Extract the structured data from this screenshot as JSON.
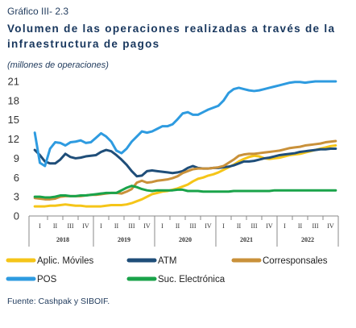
{
  "header": {
    "graph_label": "Gráfico III- 2.3",
    "title": "Volumen de las operaciones realizadas a través de la infraestructura de pagos",
    "unit": "(millones de operaciones)"
  },
  "footer": {
    "source": "Fuente: Cashpak y SIBOIF."
  },
  "chart_data": {
    "type": "line",
    "ylim": [
      0,
      21
    ],
    "yticks": [
      0,
      3,
      6,
      9,
      12,
      15,
      18,
      21
    ],
    "quarters": [
      "I",
      "II",
      "III",
      "IV",
      "I",
      "II",
      "III",
      "IV",
      "I",
      "II",
      "III",
      "IV",
      "I",
      "II",
      "III",
      "IV",
      "I",
      "II",
      "III",
      "IV"
    ],
    "years": [
      "2018",
      "2019",
      "2020",
      "2021",
      "2022"
    ],
    "points_per_quarter": 3,
    "series": [
      {
        "name": "Aplic. Móviles",
        "color": "#f5c518",
        "values": [
          1.5,
          1.5,
          1.5,
          1.6,
          1.6,
          1.7,
          1.8,
          1.7,
          1.6,
          1.6,
          1.5,
          1.5,
          1.5,
          1.5,
          1.6,
          1.7,
          1.7,
          1.7,
          1.8,
          2.0,
          2.3,
          2.6,
          3.0,
          3.4,
          3.6,
          3.8,
          3.9,
          4.1,
          4.3,
          4.6,
          4.9,
          5.4,
          5.8,
          6.0,
          6.3,
          6.5,
          6.8,
          7.2,
          7.6,
          8.0,
          8.5,
          8.9,
          9.2,
          9.4,
          9.3,
          9.0,
          8.9,
          9.0,
          9.1,
          9.3,
          9.5,
          9.6,
          9.7,
          9.9,
          10.1,
          10.3,
          10.5,
          10.7,
          10.9,
          11.0
        ]
      },
      {
        "name": "ATM",
        "color": "#1f4e79",
        "values": [
          10.3,
          9.5,
          8.5,
          8.2,
          8.2,
          8.8,
          9.7,
          9.2,
          9.0,
          9.1,
          9.3,
          9.4,
          9.5,
          10.0,
          10.3,
          10.1,
          9.5,
          8.8,
          8.0,
          7.0,
          6.2,
          6.3,
          7.0,
          7.1,
          7.0,
          6.9,
          6.8,
          6.7,
          6.8,
          7.0,
          7.5,
          7.8,
          7.5,
          7.4,
          7.4,
          7.5,
          7.5,
          7.6,
          7.7,
          7.9,
          8.2,
          8.5,
          8.5,
          8.6,
          8.8,
          9.0,
          9.1,
          9.3,
          9.5,
          9.6,
          9.7,
          9.8,
          10.0,
          10.1,
          10.2,
          10.3,
          10.4,
          10.4,
          10.5,
          10.5
        ]
      },
      {
        "name": "Corresponsales",
        "color": "#c9913a",
        "values": [
          2.8,
          2.7,
          2.6,
          2.6,
          2.7,
          3.0,
          3.1,
          3.1,
          3.1,
          3.1,
          3.2,
          3.3,
          3.3,
          3.4,
          3.5,
          3.6,
          3.6,
          3.5,
          3.8,
          4.2,
          5.2,
          5.5,
          5.2,
          5.3,
          5.5,
          5.6,
          5.7,
          5.9,
          6.2,
          6.7,
          7.0,
          7.3,
          7.4,
          7.4,
          7.4,
          7.5,
          7.6,
          7.8,
          8.3,
          8.8,
          9.4,
          9.6,
          9.7,
          9.7,
          9.8,
          9.9,
          10.0,
          10.1,
          10.2,
          10.4,
          10.6,
          10.7,
          10.8,
          11.0,
          11.1,
          11.2,
          11.3,
          11.5,
          11.6,
          11.7
        ]
      },
      {
        "name": "POS",
        "color": "#2e9be0",
        "values": [
          13.0,
          8.3,
          7.8,
          10.5,
          11.5,
          11.4,
          11.0,
          11.5,
          11.6,
          11.8,
          11.4,
          11.5,
          12.2,
          12.9,
          12.4,
          11.6,
          10.2,
          9.8,
          10.5,
          11.6,
          12.4,
          13.2,
          13.0,
          13.2,
          13.6,
          14.0,
          14.0,
          14.3,
          15.1,
          16.0,
          16.2,
          15.8,
          15.8,
          16.2,
          16.6,
          16.9,
          17.2,
          18.0,
          19.2,
          19.8,
          20.0,
          19.8,
          19.6,
          19.5,
          19.6,
          19.8,
          20.0,
          20.2,
          20.4,
          20.6,
          20.8,
          20.9,
          20.9,
          20.8,
          20.9,
          21.0,
          21.0,
          21.0,
          21.0,
          21.0
        ]
      },
      {
        "name": "Suc. Electrónica",
        "color": "#1aa34a",
        "values": [
          3.0,
          3.0,
          2.9,
          2.9,
          3.0,
          3.2,
          3.2,
          3.1,
          3.1,
          3.2,
          3.2,
          3.3,
          3.4,
          3.5,
          3.6,
          3.6,
          3.6,
          4.0,
          4.4,
          4.7,
          4.5,
          4.2,
          4.0,
          3.9,
          4.0,
          4.0,
          4.0,
          4.0,
          4.1,
          4.1,
          3.9,
          3.9,
          3.9,
          3.8,
          3.8,
          3.8,
          3.8,
          3.8,
          3.8,
          3.9,
          3.9,
          3.9,
          3.9,
          3.9,
          3.9,
          3.9,
          3.9,
          4.0,
          4.0,
          4.0,
          4.0,
          4.0,
          4.0,
          4.0,
          4.0,
          4.0,
          4.0,
          4.0,
          4.0,
          4.0
        ]
      }
    ]
  }
}
